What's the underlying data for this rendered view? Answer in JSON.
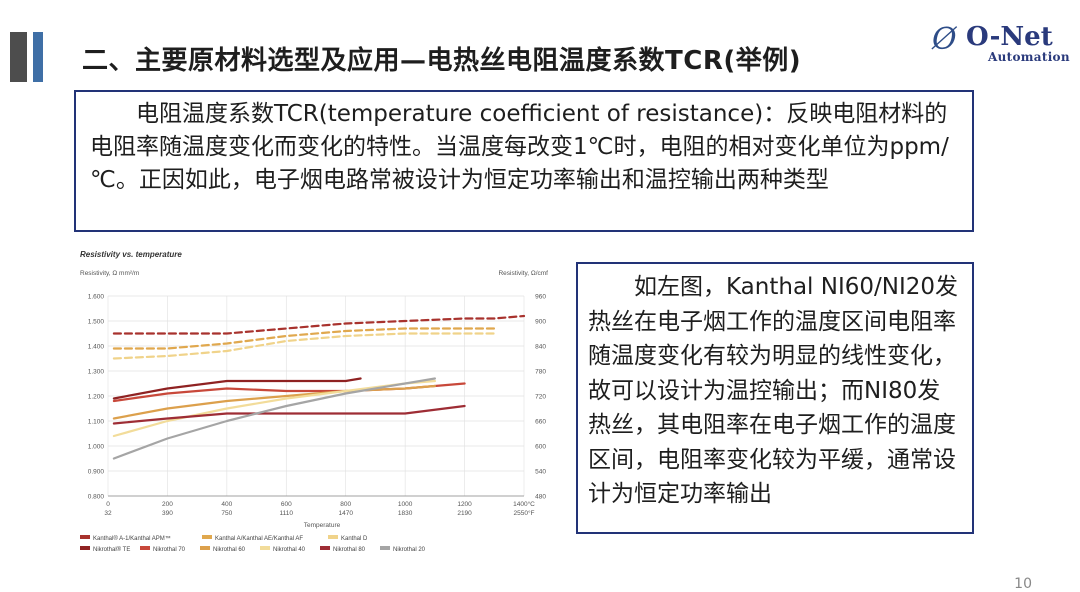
{
  "header": {
    "title": "二、主要原材料选型及应用—电热丝电阻温度系数TCR(举例)",
    "logo_mark": "Ø",
    "logo_name": "O-Net",
    "logo_sub": "Automation"
  },
  "definition": {
    "text": "电阻温度系数TCR(temperature coefficient of resistance)：反映电阻材料的电阻率随温度变化而变化的特性。当温度每改变1℃时，电阻的相对变化单位为ppm/℃。正因如此，电子烟电路常被设计为恒定功率输出和温控输出两种类型"
  },
  "description": {
    "text": "如左图，Kanthal NI60/NI20发热丝在电子烟工作的温度区间电阻率随温度变化有较为明显的线性变化，故可以设计为温控输出；而NI80发热丝，其电阻率在电子烟工作的温度区间，电阻率变化较为平缓，通常设计为恒定功率输出"
  },
  "page_number": "10",
  "colors": {
    "title_accent_dark": "#4d4d4d",
    "title_accent_blue": "#3f6fa6",
    "box_border": "#223377",
    "logo": "#2a3a7c"
  },
  "chart_data": {
    "type": "line",
    "title": "Resistivity vs. temperature",
    "ylabel": "Resistivity, Ω mm²/m",
    "y2label": "Resistivity, Ω/cmf",
    "xlabel": "Temperature",
    "ylim": [
      0.8,
      1.6
    ],
    "xlim": [
      0,
      1400
    ],
    "y_ticks": [
      "0.800",
      "0.900",
      "1.000",
      "1.100",
      "1.200",
      "1.300",
      "1.400",
      "1.500",
      "1.600"
    ],
    "y2_ticks": [
      "480",
      "540",
      "600",
      "660",
      "720",
      "780",
      "840",
      "900",
      "960"
    ],
    "x_ticks_c": [
      "0",
      "200",
      "400",
      "600",
      "800",
      "1000",
      "1200",
      "1400°C"
    ],
    "x_ticks_f": [
      "32",
      "390",
      "750",
      "1110",
      "1470",
      "1830",
      "2190",
      "2550°F"
    ],
    "grid": true,
    "legend_position": "bottom",
    "legend": [
      "Kanthal® A-1/Kanthal APM™",
      "Kanthal A/Kanthal AE/Kanthal AF",
      "Kanthal D",
      "Nikrothal® TE",
      "Nikrothal 70",
      "Nikrothal 60",
      "Nikrothal 40",
      "Nikrothal 80",
      "Nikrothal 20"
    ],
    "series": [
      {
        "name": "Kanthal® A-1/Kanthal APM™",
        "color": "#a8322d",
        "dash": true,
        "x": [
          20,
          200,
          400,
          600,
          800,
          1000,
          1200,
          1300,
          1400
        ],
        "y": [
          1.45,
          1.45,
          1.45,
          1.47,
          1.49,
          1.5,
          1.51,
          1.51,
          1.52
        ]
      },
      {
        "name": "Kanthal A/Kanthal AE/Kanthal AF",
        "color": "#e0a84e",
        "dash": true,
        "x": [
          20,
          200,
          400,
          600,
          800,
          1000,
          1200,
          1300
        ],
        "y": [
          1.39,
          1.39,
          1.41,
          1.44,
          1.46,
          1.47,
          1.47,
          1.47
        ]
      },
      {
        "name": "Kanthal D",
        "color": "#f0d38a",
        "dash": true,
        "x": [
          20,
          200,
          400,
          600,
          800,
          1000,
          1200,
          1300
        ],
        "y": [
          1.35,
          1.36,
          1.38,
          1.42,
          1.44,
          1.45,
          1.45,
          1.45
        ]
      },
      {
        "name": "Nikrothal® TE",
        "color": "#8f2222",
        "dash": false,
        "x": [
          20,
          200,
          400,
          600,
          800,
          850
        ],
        "y": [
          1.19,
          1.23,
          1.26,
          1.26,
          1.26,
          1.27
        ]
      },
      {
        "name": "Nikrothal 70",
        "color": "#c8483a",
        "dash": false,
        "x": [
          20,
          200,
          400,
          600,
          800,
          1000,
          1200
        ],
        "y": [
          1.18,
          1.21,
          1.23,
          1.22,
          1.22,
          1.23,
          1.25
        ]
      },
      {
        "name": "Nikrothal 60",
        "color": "#dca04c",
        "dash": false,
        "x": [
          20,
          200,
          400,
          600,
          800,
          1000,
          1100
        ],
        "y": [
          1.11,
          1.15,
          1.18,
          1.2,
          1.22,
          1.23,
          1.24
        ]
      },
      {
        "name": "Nikrothal 40",
        "color": "#f2dc9a",
        "dash": false,
        "x": [
          20,
          200,
          400,
          600,
          800,
          1000,
          1100
        ],
        "y": [
          1.04,
          1.1,
          1.15,
          1.19,
          1.22,
          1.25,
          1.26
        ]
      },
      {
        "name": "Nikrothal 80",
        "color": "#9e2d35",
        "dash": false,
        "x": [
          20,
          200,
          400,
          600,
          800,
          1000,
          1200
        ],
        "y": [
          1.09,
          1.11,
          1.13,
          1.13,
          1.13,
          1.13,
          1.16
        ]
      },
      {
        "name": "Nikrothal 20",
        "color": "#a5a5a5",
        "dash": false,
        "x": [
          20,
          200,
          400,
          600,
          800,
          1000,
          1100
        ],
        "y": [
          0.95,
          1.03,
          1.1,
          1.16,
          1.21,
          1.25,
          1.27
        ]
      }
    ]
  }
}
